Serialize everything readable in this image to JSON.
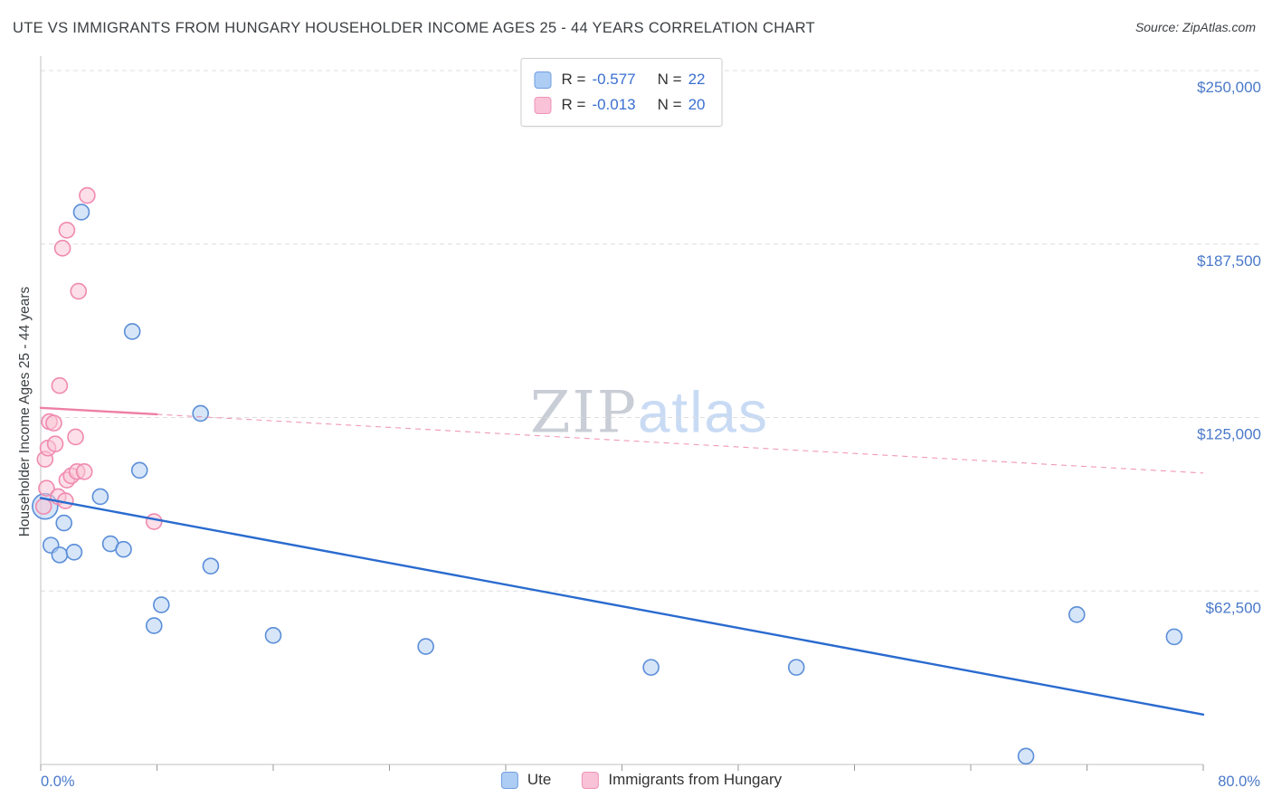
{
  "header": {
    "title": "UTE VS IMMIGRANTS FROM HUNGARY HOUSEHOLDER INCOME AGES 25 - 44 YEARS CORRELATION CHART",
    "source": "Source: ZipAtlas.com"
  },
  "watermark": {
    "zip": "ZIP",
    "atlas": "atlas"
  },
  "legend_box": {
    "rows": [
      {
        "r_label": "R =",
        "r_value": "-0.577",
        "n_label": "N =",
        "n_value": "22"
      },
      {
        "r_label": "R =",
        "r_value": "-0.013",
        "n_label": "N =",
        "n_value": "20"
      }
    ]
  },
  "axes": {
    "y_title": "Householder Income Ages 25 - 44 years",
    "x_min_label": "0.0%",
    "x_max_label": "80.0%"
  },
  "bottom_legend": [
    {
      "label": "Ute"
    },
    {
      "label": "Immigrants from Hungary"
    }
  ],
  "colors": {
    "ute_fill": "#b5d0f2",
    "ute_stroke": "#5b8ed8",
    "ute_line": "#2a6bcf",
    "hungary_fill": "#f9c4d6",
    "hungary_stroke": "#f08ab0",
    "hungary_line": "#ee7fa6",
    "axis_label_blue": "#4a79ca",
    "grid": "#dedede",
    "axis": "#c2c2c2"
  },
  "chart_data": {
    "type": "scatter",
    "title": "UTE VS IMMIGRANTS FROM HUNGARY HOUSEHOLDER INCOME AGES 25 - 44 YEARS CORRELATION CHART",
    "x_unit": "percent",
    "x_range": [
      0,
      80
    ],
    "x_tick_step": 8,
    "y_unit": "USD",
    "y_range": [
      0,
      262500
    ],
    "grid": "horizontal-dashed",
    "legend_position": "bottom-center",
    "y_gridlines": [
      {
        "value": 250000,
        "label": "$250,000"
      },
      {
        "value": 187500,
        "label": "$187,500"
      },
      {
        "value": 125000,
        "label": "$125,000"
      },
      {
        "value": 62500,
        "label": "$62,500"
      }
    ],
    "series": [
      {
        "name": "Ute",
        "R": -0.577,
        "N": 22,
        "points": [
          {
            "x": 0.3,
            "y": 93000,
            "r": 14
          },
          {
            "x": 0.7,
            "y": 79000
          },
          {
            "x": 1.3,
            "y": 75500
          },
          {
            "x": 1.6,
            "y": 87000
          },
          {
            "x": 2.3,
            "y": 76500
          },
          {
            "x": 2.8,
            "y": 199000
          },
          {
            "x": 4.1,
            "y": 96500
          },
          {
            "x": 4.8,
            "y": 79500
          },
          {
            "x": 5.7,
            "y": 77500
          },
          {
            "x": 6.3,
            "y": 156000
          },
          {
            "x": 6.8,
            "y": 106000
          },
          {
            "x": 7.8,
            "y": 50000
          },
          {
            "x": 8.3,
            "y": 57500
          },
          {
            "x": 11.0,
            "y": 126500
          },
          {
            "x": 11.7,
            "y": 71500
          },
          {
            "x": 16.0,
            "y": 46500
          },
          {
            "x": 26.5,
            "y": 42500
          },
          {
            "x": 42.0,
            "y": 35000
          },
          {
            "x": 52.0,
            "y": 35000
          },
          {
            "x": 67.8,
            "y": 3000
          },
          {
            "x": 71.3,
            "y": 54000
          },
          {
            "x": 78.0,
            "y": 46000
          }
        ]
      },
      {
        "name": "Immigrants from Hungary",
        "R": -0.013,
        "N": 20,
        "points": [
          {
            "x": 0.2,
            "y": 93000
          },
          {
            "x": 0.3,
            "y": 110000
          },
          {
            "x": 0.4,
            "y": 99500
          },
          {
            "x": 0.5,
            "y": 114000
          },
          {
            "x": 0.6,
            "y": 123500
          },
          {
            "x": 0.9,
            "y": 123000
          },
          {
            "x": 1.0,
            "y": 115500
          },
          {
            "x": 1.2,
            "y": 96500
          },
          {
            "x": 1.3,
            "y": 136500
          },
          {
            "x": 1.5,
            "y": 186000
          },
          {
            "x": 1.7,
            "y": 95000
          },
          {
            "x": 1.8,
            "y": 102500
          },
          {
            "x": 1.8,
            "y": 192500
          },
          {
            "x": 2.1,
            "y": 104000
          },
          {
            "x": 2.4,
            "y": 118000
          },
          {
            "x": 2.5,
            "y": 105500
          },
          {
            "x": 2.6,
            "y": 170500
          },
          {
            "x": 3.0,
            "y": 105500
          },
          {
            "x": 3.2,
            "y": 205000
          },
          {
            "x": 7.8,
            "y": 87500
          }
        ]
      }
    ],
    "trend_lines": [
      {
        "series": "Ute",
        "x1": 0,
        "y1": 96000,
        "x2": 80,
        "y2": 18000,
        "solid_until_x": 80
      },
      {
        "series": "Immigrants from Hungary",
        "x1": 0,
        "y1": 128500,
        "x2": 80,
        "y2": 105000,
        "solid_until_x": 8
      }
    ]
  }
}
